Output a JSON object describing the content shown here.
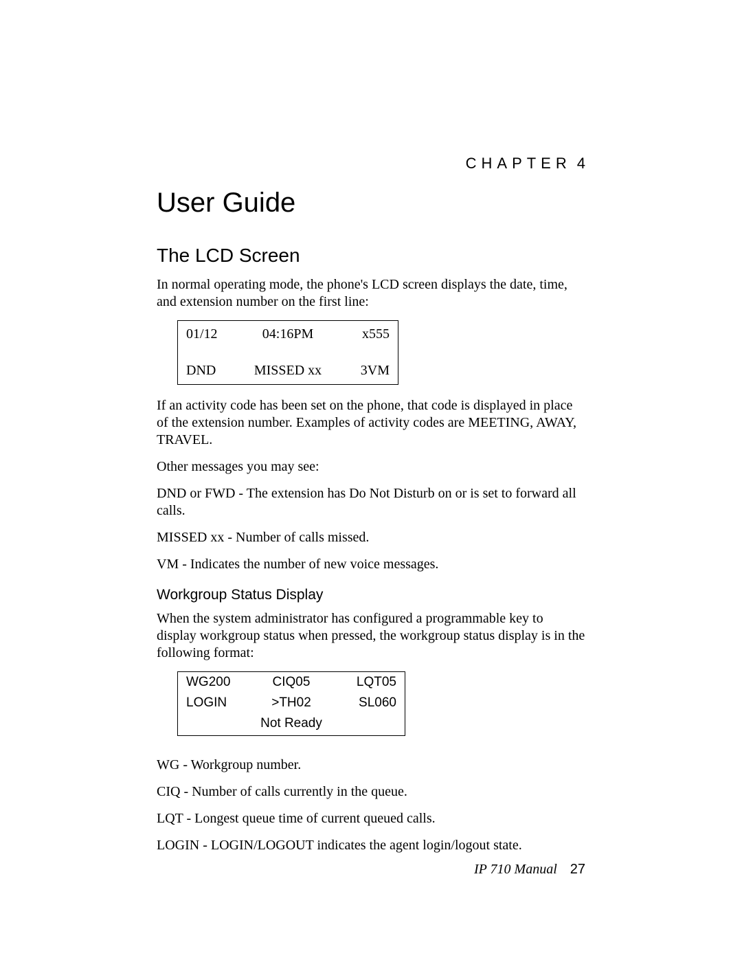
{
  "chapter": {
    "label": "CHAPTER",
    "number": "4"
  },
  "title": "User Guide",
  "section": "The LCD Screen",
  "intro": "In normal operating mode, the phone's LCD screen displays the date, time, and extension number on the first line:",
  "lcd": {
    "row1": {
      "left": "01/12",
      "center": "04:16PM",
      "right": "x555"
    },
    "row2": {
      "left": "DND",
      "center": "MISSED xx",
      "right": "3VM"
    }
  },
  "para2": "If an activity code has been set on the phone, that code is displayed in place of the extension number. Examples of activity codes are MEETING, AWAY, TRAVEL.",
  "para3": "Other messages you may see:",
  "para4": "DND or FWD - The extension has Do Not Disturb on or is set to forward all calls.",
  "para5": "MISSED xx - Number of calls missed.",
  "para6": "VM - Indicates the number of new voice messages.",
  "subhead": "Workgroup Status Display",
  "para7": "When the system administrator has configured a programmable key to display workgroup status when pressed, the workgroup status display is in the following format:",
  "wg": {
    "row1": {
      "left": "WG200",
      "center": "CIQ05",
      "right": "LQT05"
    },
    "row2": {
      "left": "LOGIN",
      "center": ">TH02",
      "right": "SL060"
    },
    "row3": "Not Ready"
  },
  "defs": {
    "wg": "WG - Workgroup number.",
    "ciq": "CIQ - Number of calls currently in the queue.",
    "lqt": "LQT - Longest queue time of current queued calls.",
    "login": "LOGIN - LOGIN/LOGOUT indicates the agent login/logout state."
  },
  "footer": {
    "manual": "IP 710 Manual",
    "page": "27"
  }
}
